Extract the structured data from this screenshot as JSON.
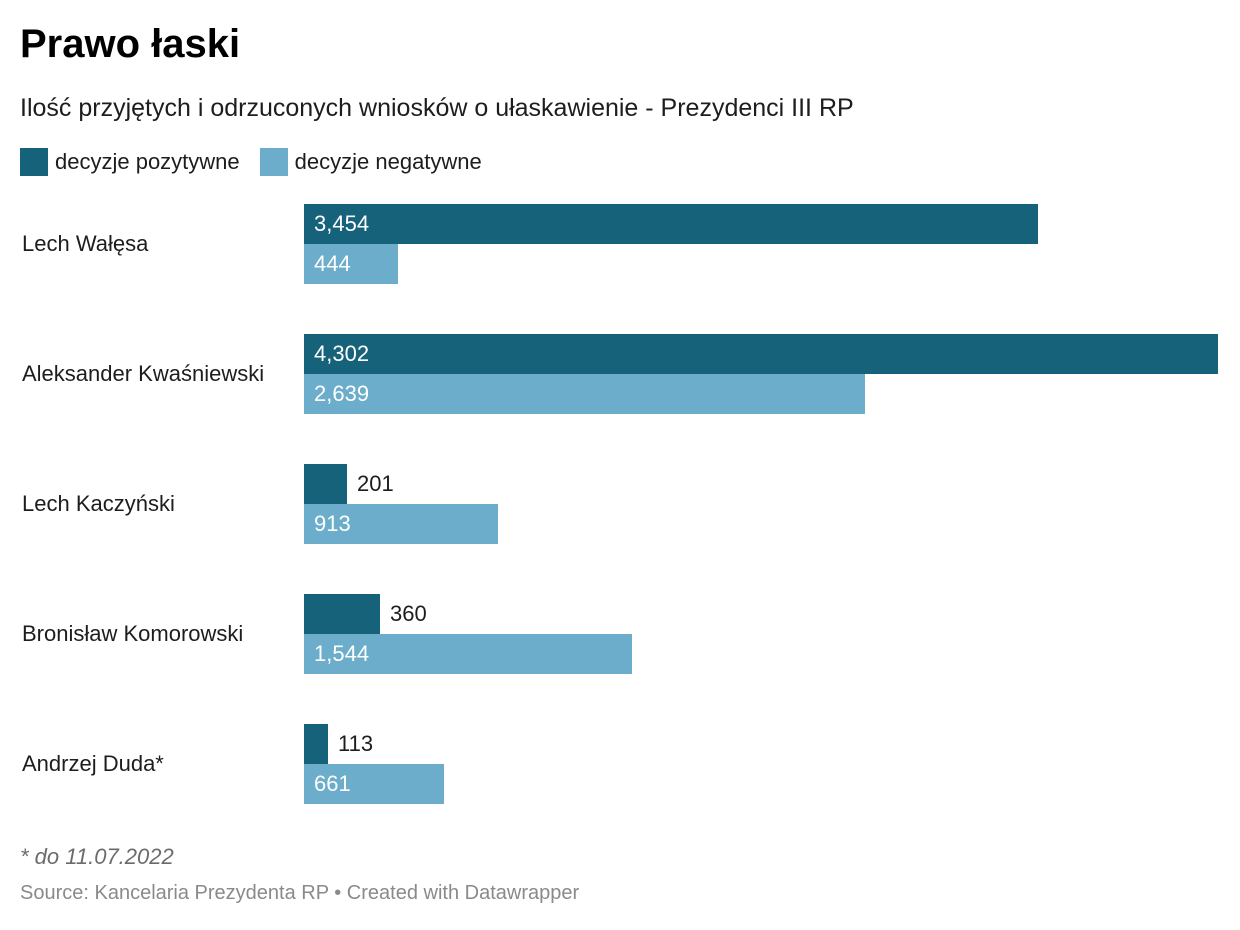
{
  "colors": {
    "positive": "#16627b",
    "negative": "#6badca"
  },
  "chart_data": {
    "type": "bar",
    "orientation": "horizontal",
    "title": "Prawo łaski",
    "subtitle": "Ilość przyjętych i odrzuconych wniosków o ułaskawienie - Prezydenci III RP",
    "categories": [
      "Lech Wałęsa",
      "Aleksander Kwaśniewski",
      "Lech Kaczyński",
      "Bronisław Komorowski",
      "Andrzej Duda*"
    ],
    "series": [
      {
        "name": "decyzje pozytywne",
        "values": [
          3454,
          4302,
          201,
          360,
          113
        ],
        "labels": [
          "3,454",
          "4,302",
          "201",
          "360",
          "113"
        ]
      },
      {
        "name": "decyzje negatywne",
        "values": [
          444,
          2639,
          913,
          1544,
          661
        ],
        "labels": [
          "444",
          "2,639",
          "913",
          "1,544",
          "661"
        ]
      }
    ],
    "xlim": [
      0,
      4302
    ],
    "grid": false,
    "legend_position": "top-left",
    "note": "* do 11.07.2022",
    "source": "Source: Kancelaria Prezydenta RP • Created with Datawrapper"
  }
}
